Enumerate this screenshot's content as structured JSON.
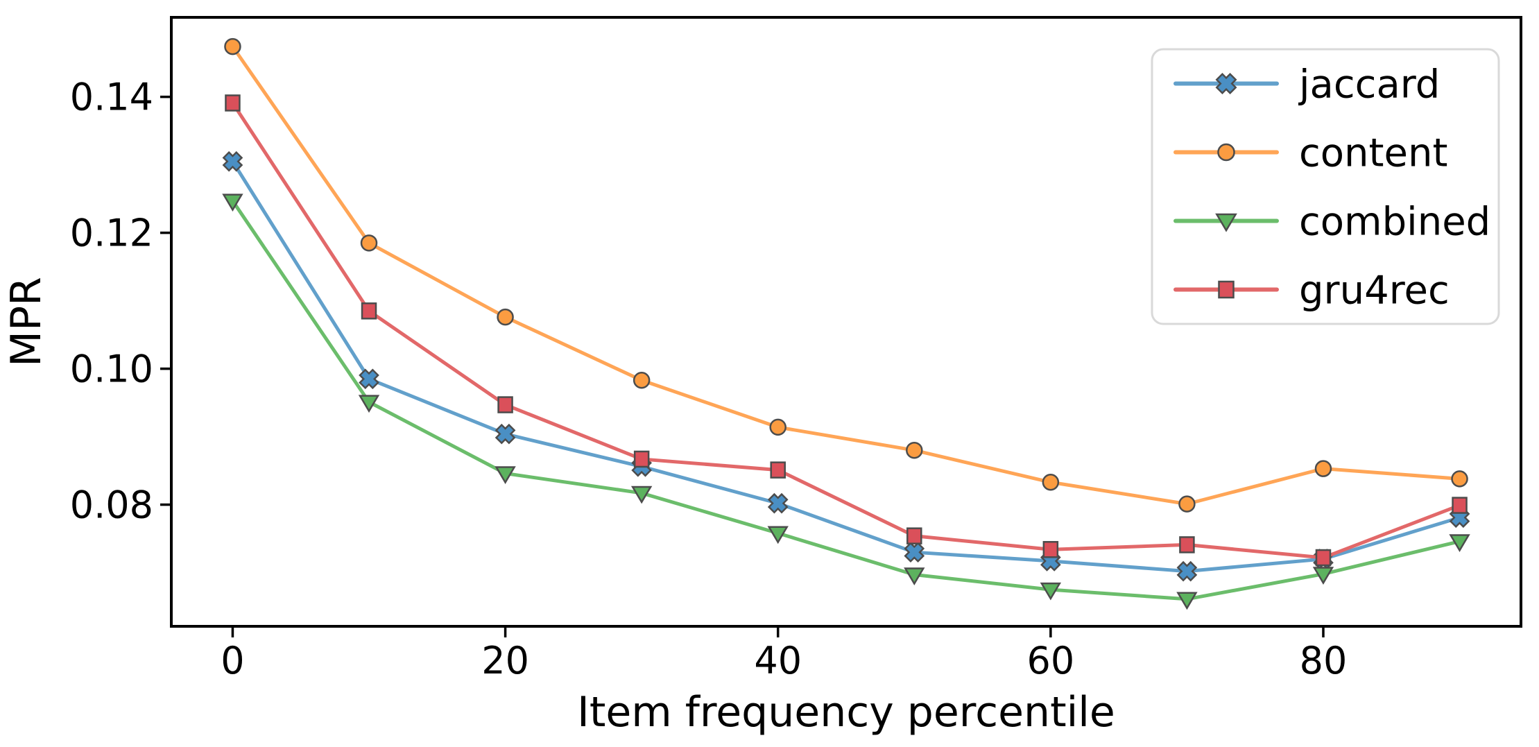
{
  "chart_data": {
    "type": "line",
    "title": "",
    "xlabel": "Item frequency percentile",
    "ylabel": "MPR",
    "x": [
      0,
      10,
      20,
      30,
      40,
      50,
      60,
      70,
      80,
      90
    ],
    "series": [
      {
        "name": "jaccard",
        "marker": "X",
        "line_color": "#62a0cb",
        "marker_fill": "#4a8fc4",
        "values": [
          0.1305,
          0.0985,
          0.0904,
          0.0856,
          0.0802,
          0.073,
          0.0717,
          0.0702,
          0.072,
          0.0781
        ]
      },
      {
        "name": "content",
        "marker": "o",
        "line_color": "#ffa556",
        "marker_fill": "#fb9c41",
        "values": [
          0.1474,
          0.1185,
          0.1076,
          0.0983,
          0.0914,
          0.088,
          0.0833,
          0.0801,
          0.0853,
          0.0838
        ]
      },
      {
        "name": "combined",
        "marker": "v",
        "line_color": "#6bbd6b",
        "marker_fill": "#5cb25e",
        "values": [
          0.1247,
          0.0951,
          0.0846,
          0.0817,
          0.0758,
          0.0697,
          0.0675,
          0.0661,
          0.0698,
          0.0746
        ]
      },
      {
        "name": "gru4rec",
        "marker": "s",
        "line_color": "#e26869",
        "marker_fill": "#da505a",
        "values": [
          0.1391,
          0.1085,
          0.0947,
          0.0867,
          0.0851,
          0.0754,
          0.0734,
          0.0741,
          0.0722,
          0.0799
        ]
      }
    ],
    "xticks": {
      "values": [
        0,
        20,
        40,
        60,
        80
      ],
      "labels": [
        "0",
        "20",
        "40",
        "60",
        "80"
      ]
    },
    "yticks": {
      "values": [
        0.08,
        0.1,
        0.12,
        0.14
      ],
      "labels": [
        "0.08",
        "0.10",
        "0.12",
        "0.14"
      ]
    },
    "xlim": [
      -4.5,
      94.5
    ],
    "ylim": [
      0.0621,
      0.1517
    ],
    "grid": false,
    "legend": {
      "position": "upper right",
      "entries": [
        "jaccard",
        "content",
        "combined",
        "gru4rec"
      ],
      "border_color": "#d9d9d9",
      "background": "#ffffff"
    },
    "marker_edge_color": "#4c4c4c",
    "spine_color": "#000000"
  }
}
